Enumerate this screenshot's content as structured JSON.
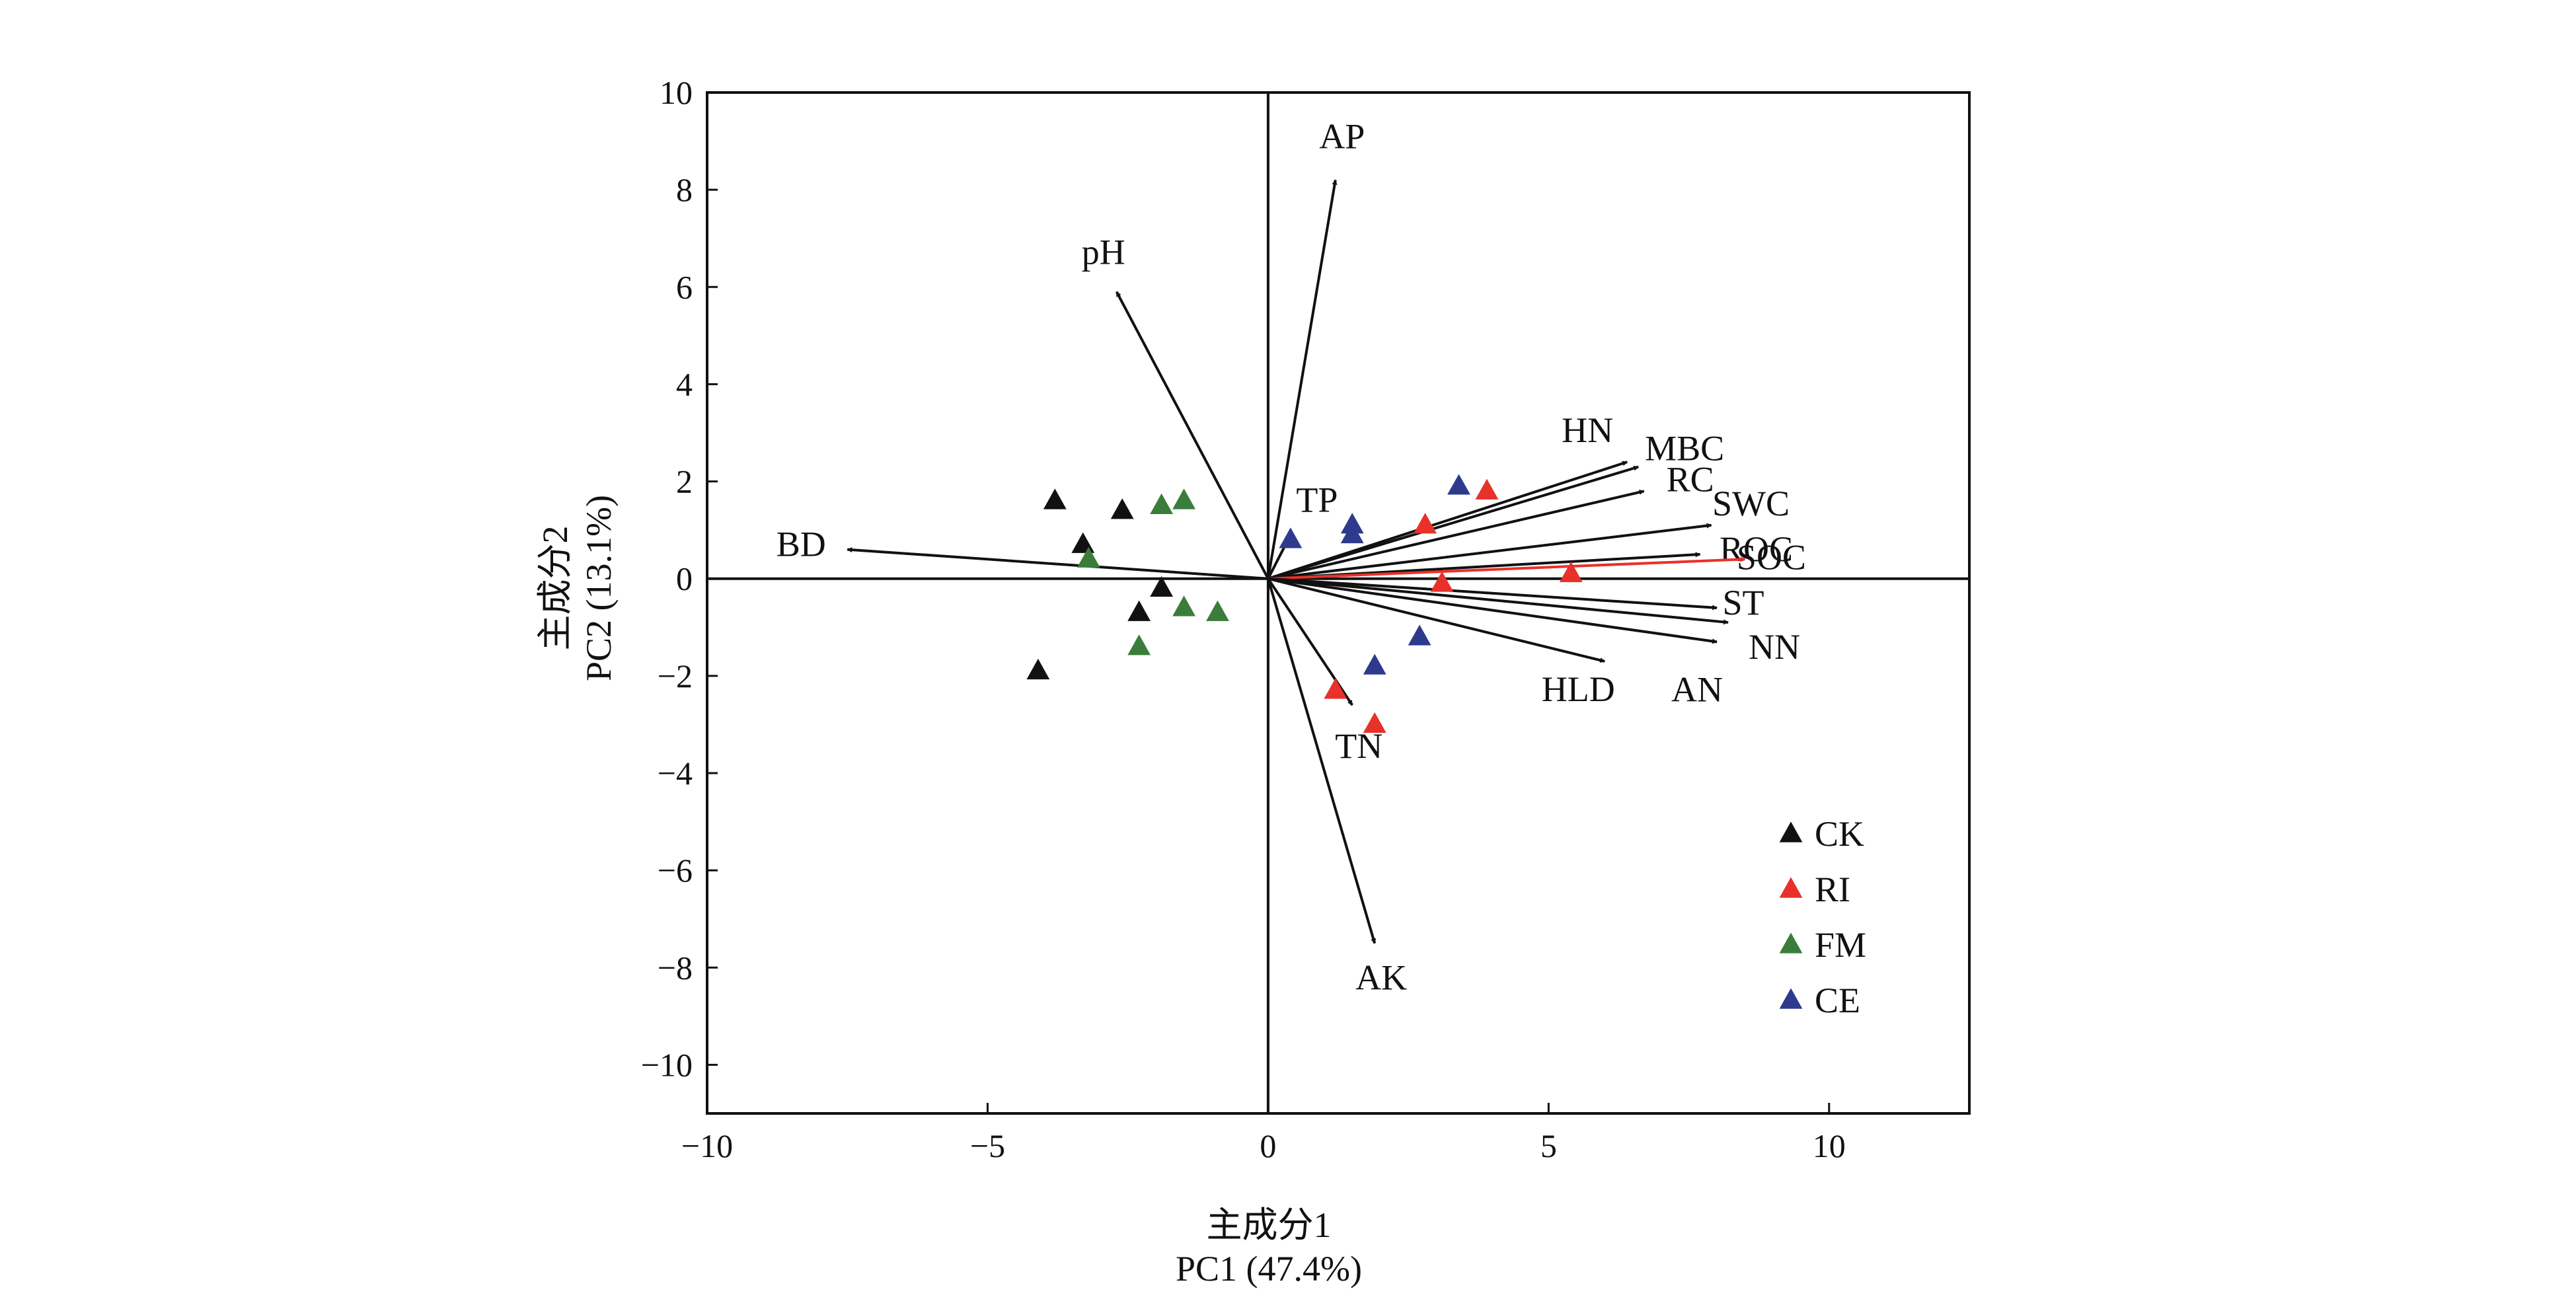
{
  "chart_data": {
    "type": "scatter",
    "subtype": "pca-biplot",
    "xlabel": [
      "主成分1",
      "PC1 (47.4%)"
    ],
    "ylabel": [
      "主成分2",
      "PC2 (13.1%)"
    ],
    "xlim": [
      -10,
      12.5
    ],
    "ylim": [
      -11,
      10
    ],
    "xticks": [
      -10,
      -5,
      0,
      5,
      10
    ],
    "yticks": [
      10,
      8,
      6,
      4,
      2,
      0,
      -2,
      -4,
      -6,
      -8,
      -10
    ],
    "grid": false,
    "zero_lines": true,
    "legend_position": "bottom-right",
    "series": [
      {
        "name": "CK",
        "color": "#111111",
        "marker": "triangle",
        "points": [
          [
            -3.8,
            1.6
          ],
          [
            -2.6,
            1.4
          ],
          [
            -3.3,
            0.7
          ],
          [
            -1.9,
            -0.2
          ],
          [
            -2.3,
            -0.7
          ],
          [
            -4.1,
            -1.9
          ]
        ]
      },
      {
        "name": "RI",
        "color": "#e8312a",
        "marker": "triangle",
        "points": [
          [
            3.9,
            1.8
          ],
          [
            2.8,
            1.1
          ],
          [
            3.1,
            -0.1
          ],
          [
            5.4,
            0.1
          ],
          [
            1.2,
            -2.3
          ],
          [
            1.9,
            -3.0
          ]
        ]
      },
      {
        "name": "FM",
        "color": "#3a7d3a",
        "marker": "triangle",
        "points": [
          [
            -1.5,
            1.6
          ],
          [
            -1.9,
            1.5
          ],
          [
            -3.2,
            0.4
          ],
          [
            -1.5,
            -0.6
          ],
          [
            -0.9,
            -0.7
          ],
          [
            -2.3,
            -1.4
          ]
        ]
      },
      {
        "name": "CE",
        "color": "#2e3a8c",
        "marker": "triangle",
        "points": [
          [
            3.4,
            1.9
          ],
          [
            1.5,
            1.1
          ],
          [
            1.5,
            0.9
          ],
          [
            0.4,
            0.8
          ],
          [
            2.7,
            -1.2
          ],
          [
            1.9,
            -1.8
          ]
        ]
      }
    ],
    "vectors": [
      {
        "label": "AP",
        "x": 1.2,
        "y": 8.2,
        "color": "#111111"
      },
      {
        "label": "pH",
        "x": -2.7,
        "y": 5.9,
        "color": "#111111"
      },
      {
        "label": "BD",
        "x": -7.5,
        "y": 0.6,
        "color": "#111111"
      },
      {
        "label": "TP",
        "x": 0.4,
        "y": 0.9,
        "color": "#111111"
      },
      {
        "label": "TN",
        "x": 1.5,
        "y": -2.6,
        "color": "#111111"
      },
      {
        "label": "AK",
        "x": 1.9,
        "y": -7.5,
        "color": "#111111"
      },
      {
        "label": "HN",
        "x": 6.4,
        "y": 2.4,
        "color": "#111111"
      },
      {
        "label": "MBC",
        "x": 6.6,
        "y": 2.3,
        "color": "#111111"
      },
      {
        "label": "RC",
        "x": 6.7,
        "y": 1.8,
        "color": "#111111"
      },
      {
        "label": "SWC",
        "x": 7.9,
        "y": 1.1,
        "color": "#111111"
      },
      {
        "label": "ROC",
        "x": 7.7,
        "y": 0.5,
        "color": "#111111"
      },
      {
        "label": "SOC",
        "x": 8.5,
        "y": 0.4,
        "color": "#e8312a"
      },
      {
        "label": "ST",
        "x": 8.0,
        "y": -0.6,
        "color": "#111111"
      },
      {
        "label": "NN",
        "x": 8.2,
        "y": -0.9,
        "color": "#111111"
      },
      {
        "label": "AN",
        "x": 8.0,
        "y": -1.3,
        "color": "#111111"
      },
      {
        "label": "HLD",
        "x": 6.0,
        "y": -1.7,
        "color": "#111111"
      }
    ],
    "legend": [
      "CK",
      "RI",
      "FM",
      "CE"
    ]
  }
}
